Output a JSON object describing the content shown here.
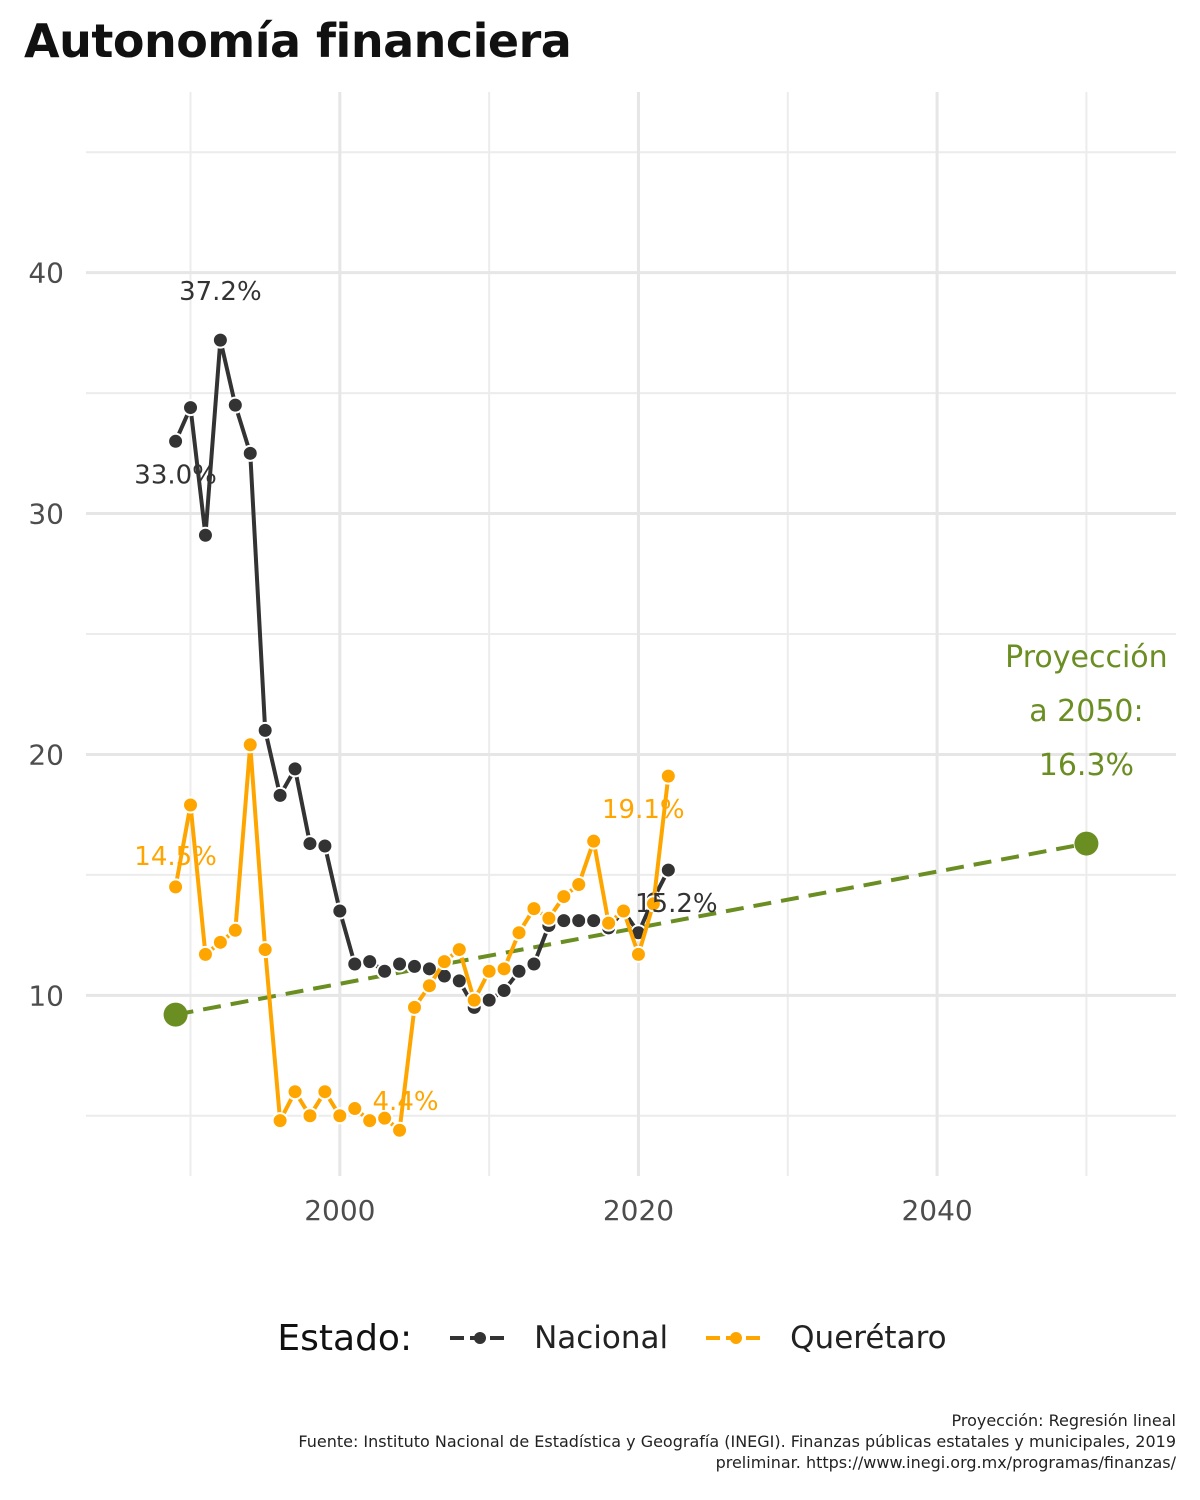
{
  "title": "Autonomía financiera",
  "legend": {
    "title": "Estado:",
    "items": [
      {
        "label": "Nacional",
        "color": "#333333"
      },
      {
        "label": "Querétaro",
        "color": "#FFA500"
      }
    ]
  },
  "caption": [
    "Proyección: Regresión lineal",
    "Fuente: Instituto Nacional de Estadística y Geografía (INEGI). Finanzas públicas estatales y municipales, 2019",
    "preliminar. https://www.inegi.org.mx/programas/finanzas/"
  ],
  "chart_data": {
    "type": "line",
    "xlim": [
      1983,
      2056
    ],
    "ylim": [
      2.5,
      47.5
    ],
    "x_ticks": [
      2000,
      2020,
      2040
    ],
    "y_ticks": [
      10,
      20,
      30,
      40
    ],
    "grid": true,
    "legend_position": "bottom",
    "series": [
      {
        "name": "Nacional",
        "color": "#333333",
        "x": [
          1989,
          1990,
          1991,
          1992,
          1993,
          1994,
          1995,
          1996,
          1997,
          1998,
          1999,
          2000,
          2001,
          2002,
          2003,
          2004,
          2005,
          2006,
          2007,
          2008,
          2009,
          2010,
          2011,
          2012,
          2013,
          2014,
          2015,
          2016,
          2017,
          2018,
          2019,
          2020,
          2021,
          2022
        ],
        "y": [
          33.0,
          34.4,
          29.1,
          37.2,
          34.5,
          32.5,
          21.0,
          18.3,
          19.4,
          16.3,
          16.2,
          13.5,
          11.3,
          11.4,
          11.0,
          11.3,
          11.2,
          11.1,
          10.8,
          10.6,
          9.5,
          9.8,
          10.2,
          11.0,
          11.3,
          12.9,
          13.1,
          13.1,
          13.1,
          12.8,
          13.5,
          12.6,
          14.0,
          15.2
        ]
      },
      {
        "name": "Querétaro",
        "color": "#FFA500",
        "x": [
          1989,
          1990,
          1991,
          1992,
          1993,
          1994,
          1995,
          1996,
          1997,
          1998,
          1999,
          2000,
          2001,
          2002,
          2003,
          2004,
          2005,
          2006,
          2007,
          2008,
          2009,
          2010,
          2011,
          2012,
          2013,
          2014,
          2015,
          2016,
          2017,
          2018,
          2019,
          2020,
          2021,
          2022
        ],
        "y": [
          14.5,
          17.9,
          11.7,
          12.2,
          12.7,
          20.4,
          11.9,
          4.8,
          6.0,
          5.0,
          6.0,
          5.0,
          5.3,
          4.8,
          4.9,
          4.4,
          9.5,
          10.4,
          11.4,
          11.9,
          9.8,
          11.0,
          11.1,
          12.6,
          13.6,
          13.2,
          14.1,
          14.6,
          16.4,
          13.0,
          13.5,
          11.7,
          13.8,
          19.1
        ]
      }
    ],
    "projection": {
      "color": "#6B8E23",
      "from": {
        "x": 1989,
        "y": 9.2
      },
      "to": {
        "x": 2050,
        "y": 16.3
      },
      "label_lines": [
        "Proyección",
        "a 2050:",
        "16.3%"
      ]
    },
    "annotations": [
      {
        "text": "37.2%",
        "x": 1992,
        "y": 37.2,
        "series": "Nacional"
      },
      {
        "text": "33.0%",
        "x": 1989,
        "y": 33.0,
        "series": "Nacional"
      },
      {
        "text": "15.2%",
        "x": 2022,
        "y": 15.2,
        "series": "Nacional"
      },
      {
        "text": "14.5%",
        "x": 1989,
        "y": 14.5,
        "series": "Querétaro"
      },
      {
        "text": "4.4%",
        "x": 2004,
        "y": 4.4,
        "series": "Querétaro"
      },
      {
        "text": "19.1%",
        "x": 2022,
        "y": 19.1,
        "series": "Querétaro"
      }
    ]
  }
}
